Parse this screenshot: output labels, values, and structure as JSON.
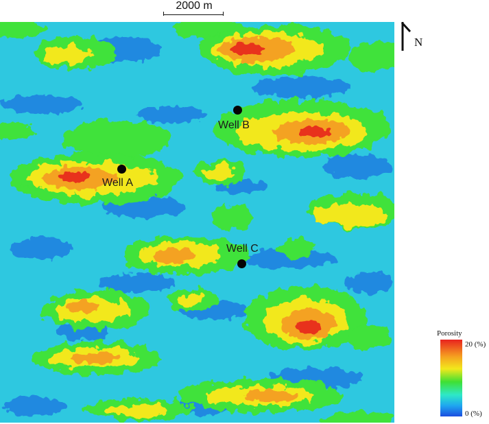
{
  "scale_bar": {
    "label": "2000 m"
  },
  "north_arrow": {
    "label": "N"
  },
  "wells": [
    {
      "name": "Well A"
    },
    {
      "name": "Well B"
    },
    {
      "name": "Well C"
    }
  ],
  "legend": {
    "title": "Porosity",
    "max_label": "20 (%)",
    "min_label": "0 (%)",
    "colors": [
      "#e8231f",
      "#f5a020",
      "#f2e81c",
      "#3fe034",
      "#2ee8c8",
      "#1fa6f0",
      "#1c4de0"
    ]
  },
  "map_colors": {
    "background": "#2ec8e0",
    "low": "#1f74e0",
    "green": "#3fe23a",
    "yellow": "#f2e81c",
    "orange": "#f4a222",
    "red": "#e8301f"
  }
}
